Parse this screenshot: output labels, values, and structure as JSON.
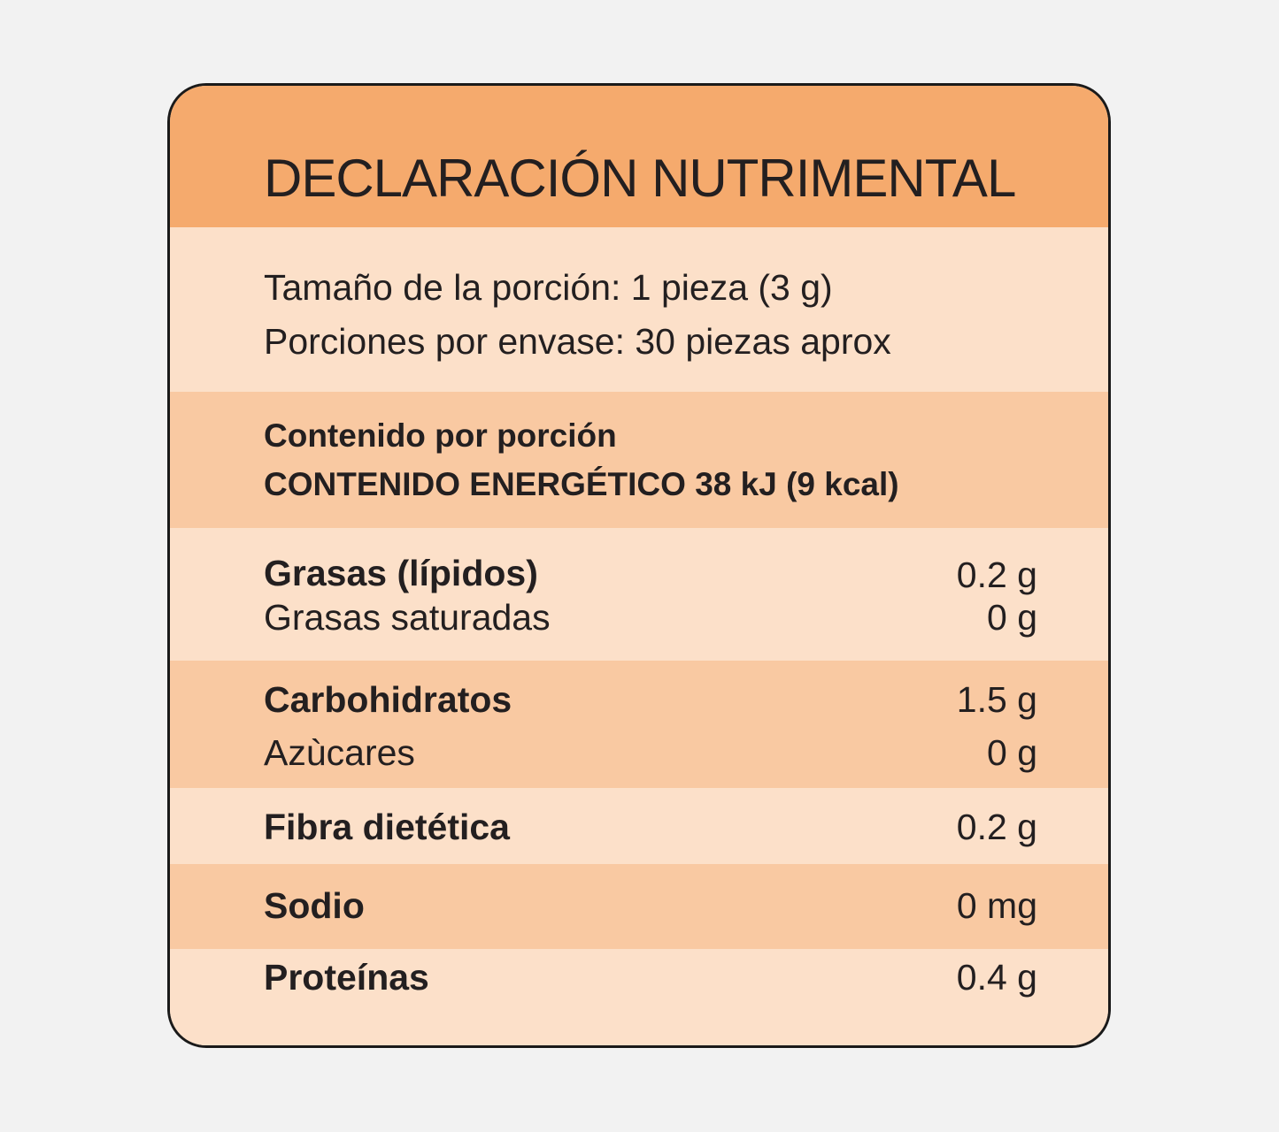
{
  "colors": {
    "page_background": "#f2f2f2",
    "header_band": "#f5aa6d",
    "light_band": "#fce0c9",
    "medium_band": "#f9c9a2",
    "border": "#1a1a1a",
    "text": "#231f20"
  },
  "header": {
    "title": "DECLARACIÓN NUTRIMENTAL"
  },
  "serving": {
    "size": "Tamaño de la porción: 1 pieza (3 g)",
    "per_container": "Porciones por envase: 30 piezas aprox"
  },
  "energy": {
    "heading": "Contenido por porción",
    "energy_content": "CONTENIDO ENERGÉTICO 38 kJ (9 kcal)"
  },
  "nutrients": {
    "fat": {
      "label": "Grasas (lípidos)",
      "value": "0.2 g"
    },
    "saturated_fat": {
      "label": "Grasas saturadas",
      "value": "0 g"
    },
    "carbohydrates": {
      "label": "Carbohidratos",
      "value": "1.5 g"
    },
    "sugars": {
      "label": "Azùcares",
      "value": "0 g"
    },
    "fiber": {
      "label": "Fibra dietética",
      "value": "0.2 g"
    },
    "sodium": {
      "label": "Sodio",
      "value": "0 mg"
    },
    "protein": {
      "label": "Proteínas",
      "value": "0.4 g"
    }
  }
}
